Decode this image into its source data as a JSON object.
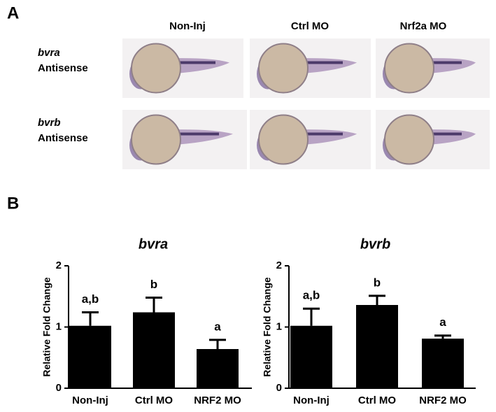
{
  "figure": {
    "panel_labels": [
      "A",
      "B"
    ],
    "columns": [
      "Non-Inj",
      "Ctrl MO",
      "Nrf2a MO"
    ],
    "rows": [
      {
        "gene": "bvra",
        "probe": "Antisense"
      },
      {
        "gene": "bvrb",
        "probe": "Antisense"
      }
    ]
  },
  "chart_data": [
    {
      "type": "bar",
      "title": "bvra",
      "ylabel": "Relative  Fold  Change",
      "categories": [
        "Non-Inj",
        "Ctrl MO",
        "NRF2 MO"
      ],
      "values": [
        1.02,
        1.24,
        0.64
      ],
      "errors": [
        0.22,
        0.24,
        0.15
      ],
      "annotations": [
        "a,b",
        "b",
        "a"
      ],
      "color": "#000000",
      "ylim": [
        0,
        2
      ],
      "yticks": [
        0,
        1,
        2
      ]
    },
    {
      "type": "bar",
      "title": "bvrb",
      "ylabel": "Relative  Fold  Change",
      "categories": [
        "Non-Inj",
        "Ctrl MO",
        "NRF2 MO"
      ],
      "values": [
        1.02,
        1.36,
        0.81
      ],
      "errors": [
        0.28,
        0.15,
        0.05
      ],
      "annotations": [
        "a,b",
        "b",
        "a"
      ],
      "color": "#000000",
      "ylim": [
        0,
        2
      ],
      "yticks": [
        0,
        1,
        2
      ]
    }
  ]
}
